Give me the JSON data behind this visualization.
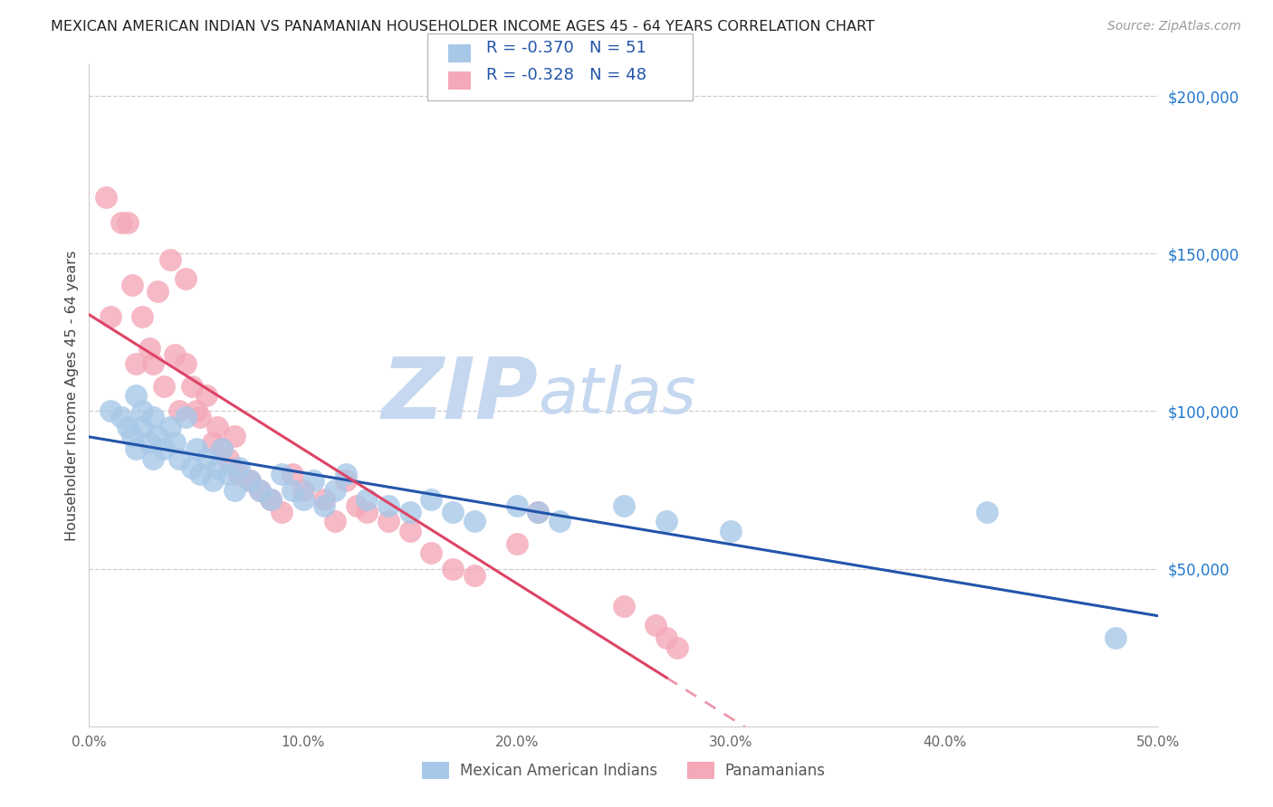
{
  "title": "MEXICAN AMERICAN INDIAN VS PANAMANIAN HOUSEHOLDER INCOME AGES 45 - 64 YEARS CORRELATION CHART",
  "source": "Source: ZipAtlas.com",
  "ylabel": "Householder Income Ages 45 - 64 years",
  "xlim": [
    0.0,
    0.5
  ],
  "ylim": [
    0,
    210000
  ],
  "xtick_labels": [
    "0.0%",
    "10.0%",
    "20.0%",
    "30.0%",
    "40.0%",
    "50.0%"
  ],
  "xtick_values": [
    0.0,
    0.1,
    0.2,
    0.3,
    0.4,
    0.5
  ],
  "ytick_labels": [
    "$50,000",
    "$100,000",
    "$150,000",
    "$200,000"
  ],
  "ytick_values": [
    50000,
    100000,
    150000,
    200000
  ],
  "legend_r_blue": "-0.370",
  "legend_n_blue": "51",
  "legend_r_pink": "-0.328",
  "legend_n_pink": "48",
  "legend_label_blue": "Mexican American Indians",
  "legend_label_pink": "Panamanians",
  "blue_color": "#a8c8e8",
  "pink_color": "#f4a8b8",
  "line_blue": "#2255aa",
  "line_pink": "#dd4466",
  "watermark_zip": "ZIP",
  "watermark_atlas": "atlas",
  "watermark_color": "#c5d8f0",
  "blue_scatter_x": [
    0.01,
    0.015,
    0.018,
    0.02,
    0.022,
    0.022,
    0.025,
    0.025,
    0.028,
    0.03,
    0.03,
    0.032,
    0.035,
    0.038,
    0.04,
    0.042,
    0.045,
    0.048,
    0.05,
    0.052,
    0.055,
    0.058,
    0.06,
    0.062,
    0.065,
    0.068,
    0.07,
    0.075,
    0.08,
    0.085,
    0.09,
    0.095,
    0.1,
    0.105,
    0.11,
    0.115,
    0.12,
    0.13,
    0.14,
    0.15,
    0.16,
    0.17,
    0.18,
    0.2,
    0.21,
    0.22,
    0.25,
    0.27,
    0.3,
    0.42,
    0.48
  ],
  "blue_scatter_y": [
    100000,
    98000,
    95000,
    92000,
    105000,
    88000,
    100000,
    95000,
    90000,
    98000,
    85000,
    92000,
    88000,
    95000,
    90000,
    85000,
    98000,
    82000,
    88000,
    80000,
    85000,
    78000,
    82000,
    88000,
    80000,
    75000,
    82000,
    78000,
    75000,
    72000,
    80000,
    75000,
    72000,
    78000,
    70000,
    75000,
    80000,
    72000,
    70000,
    68000,
    72000,
    68000,
    65000,
    70000,
    68000,
    65000,
    70000,
    65000,
    62000,
    68000,
    28000
  ],
  "pink_scatter_x": [
    0.008,
    0.01,
    0.015,
    0.018,
    0.02,
    0.022,
    0.025,
    0.028,
    0.03,
    0.032,
    0.035,
    0.038,
    0.04,
    0.042,
    0.045,
    0.045,
    0.048,
    0.05,
    0.052,
    0.055,
    0.058,
    0.06,
    0.062,
    0.065,
    0.068,
    0.07,
    0.075,
    0.08,
    0.085,
    0.09,
    0.095,
    0.1,
    0.11,
    0.115,
    0.12,
    0.125,
    0.13,
    0.14,
    0.15,
    0.16,
    0.17,
    0.18,
    0.2,
    0.21,
    0.25,
    0.265,
    0.27,
    0.275
  ],
  "pink_scatter_y": [
    168000,
    130000,
    160000,
    160000,
    140000,
    115000,
    130000,
    120000,
    115000,
    138000,
    108000,
    148000,
    118000,
    100000,
    142000,
    115000,
    108000,
    100000,
    98000,
    105000,
    90000,
    95000,
    88000,
    85000,
    92000,
    80000,
    78000,
    75000,
    72000,
    68000,
    80000,
    75000,
    72000,
    65000,
    78000,
    70000,
    68000,
    65000,
    62000,
    55000,
    50000,
    48000,
    58000,
    68000,
    38000,
    32000,
    28000,
    25000
  ],
  "pink_line_solid_end": 0.27,
  "blue_line_intercept": 95000,
  "blue_line_slope": -140000,
  "pink_line_intercept": 110000,
  "pink_line_slope": -400000
}
